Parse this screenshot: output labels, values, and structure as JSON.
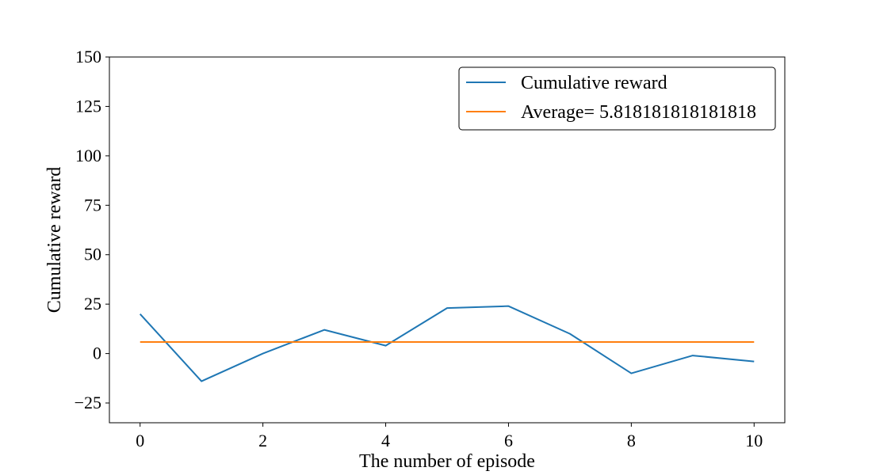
{
  "chart_data": {
    "type": "line",
    "title": "",
    "xlabel": "The number of episode",
    "ylabel": "Cumulative reward",
    "xlim": [
      -0.5,
      10.5
    ],
    "ylim": [
      -35,
      150
    ],
    "xticks": [
      0,
      2,
      4,
      6,
      8,
      10
    ],
    "yticks": [
      -25,
      0,
      25,
      50,
      75,
      100,
      125,
      150
    ],
    "xtick_labels": [
      "0",
      "2",
      "4",
      "6",
      "8",
      "10"
    ],
    "ytick_labels": [
      "−25",
      "0",
      "25",
      "50",
      "75",
      "100",
      "125",
      "150"
    ],
    "grid": false,
    "legend_position": "upper right",
    "series": [
      {
        "name": "Cumulative reward",
        "color": "#1f77b4",
        "x": [
          0,
          1,
          2,
          3,
          4,
          5,
          6,
          7,
          8,
          9,
          10
        ],
        "values": [
          20,
          -14,
          0,
          12,
          4,
          23,
          24,
          10,
          -10,
          -1,
          -4
        ]
      },
      {
        "name": "Average= 5.818181818181818",
        "color": "#ff7f0e",
        "x": [
          0,
          10
        ],
        "values": [
          5.818181818181818,
          5.818181818181818
        ]
      }
    ]
  }
}
